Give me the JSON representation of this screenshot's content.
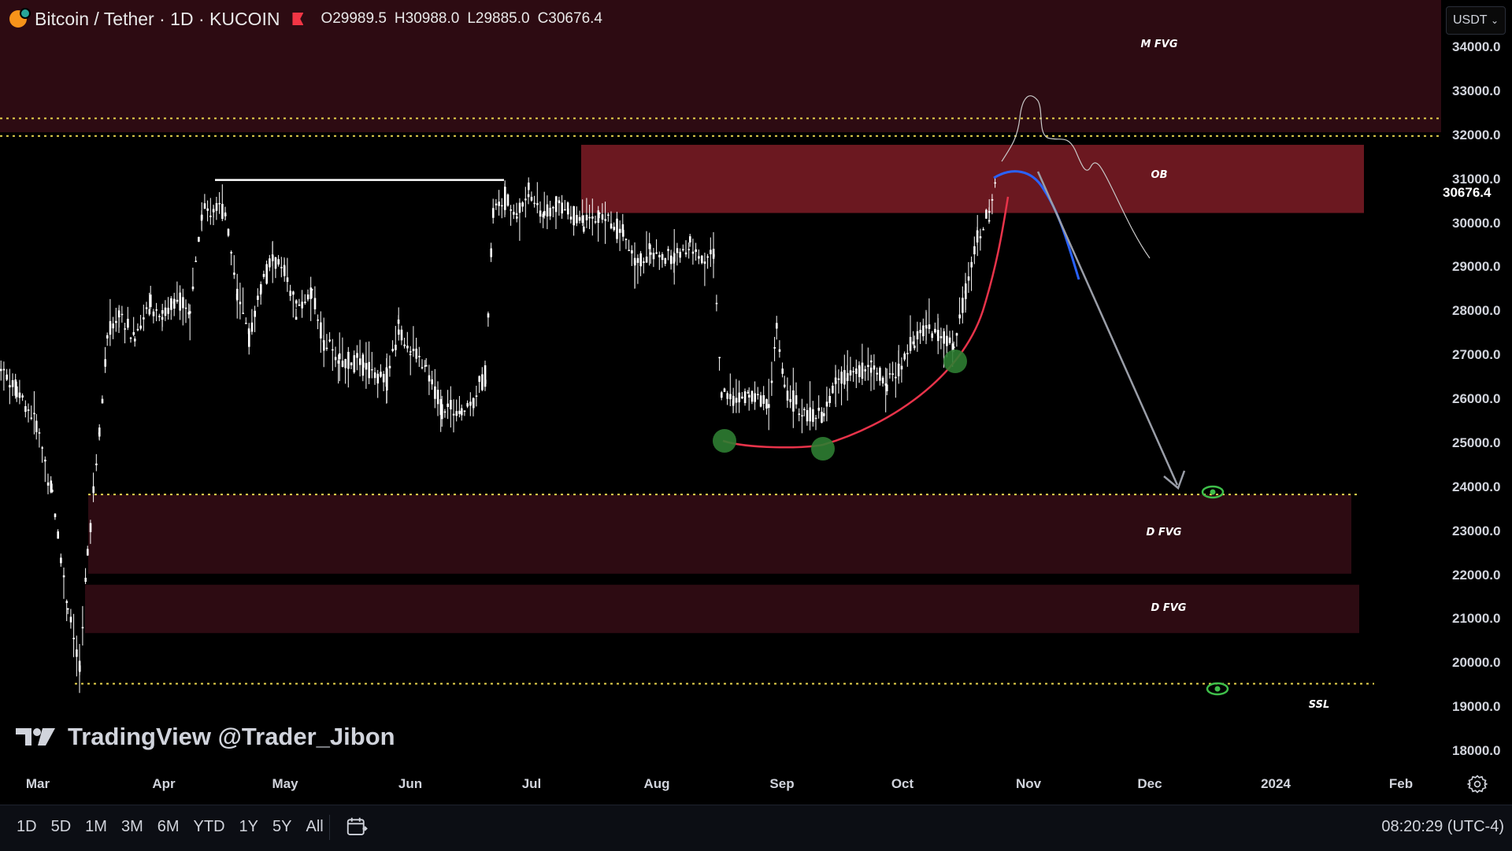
{
  "header": {
    "symbol": "Bitcoin / Tether · 1D · KUCOIN",
    "open": "O29989.5",
    "high": "H30988.0",
    "low": "L29885.0",
    "close": "C30676.4"
  },
  "currency": "USDT",
  "current_price": "30676.4",
  "price_axis": [
    "34000.0",
    "33000.0",
    "32000.0",
    "31000.0",
    "30000.0",
    "29000.0",
    "28000.0",
    "27000.0",
    "26000.0",
    "25000.0",
    "24000.0",
    "23000.0",
    "22000.0",
    "21000.0",
    "20000.0",
    "19000.0",
    "18000.0"
  ],
  "time_axis": [
    "Mar",
    "Apr",
    "May",
    "Jun",
    "Jul",
    "Aug",
    "Sep",
    "Oct",
    "Nov",
    "Dec",
    "2024",
    "Feb"
  ],
  "zones": {
    "mfvg": "M FVG",
    "ob": "OB",
    "dfvg1": "D FVG",
    "dfvg2": "D FVG",
    "ssl": "SSL"
  },
  "watermark": {
    "brand": "TradingView",
    "handle": "@Trader_Jibon"
  },
  "ranges": [
    "1D",
    "5D",
    "1M",
    "3M",
    "6M",
    "YTD",
    "1Y",
    "5Y",
    "All"
  ],
  "clock": "08:20:29 (UTC-4)",
  "colors": {
    "background": "#000000",
    "zone_dark": "#2d0b12",
    "zone_ob": "#6b1820",
    "yellow_line": "#e8d44d",
    "candle": "#ffffff",
    "red_curve": "#e8334a",
    "blue_curve": "#2962ff",
    "marker_green": "#2e7d32"
  }
}
